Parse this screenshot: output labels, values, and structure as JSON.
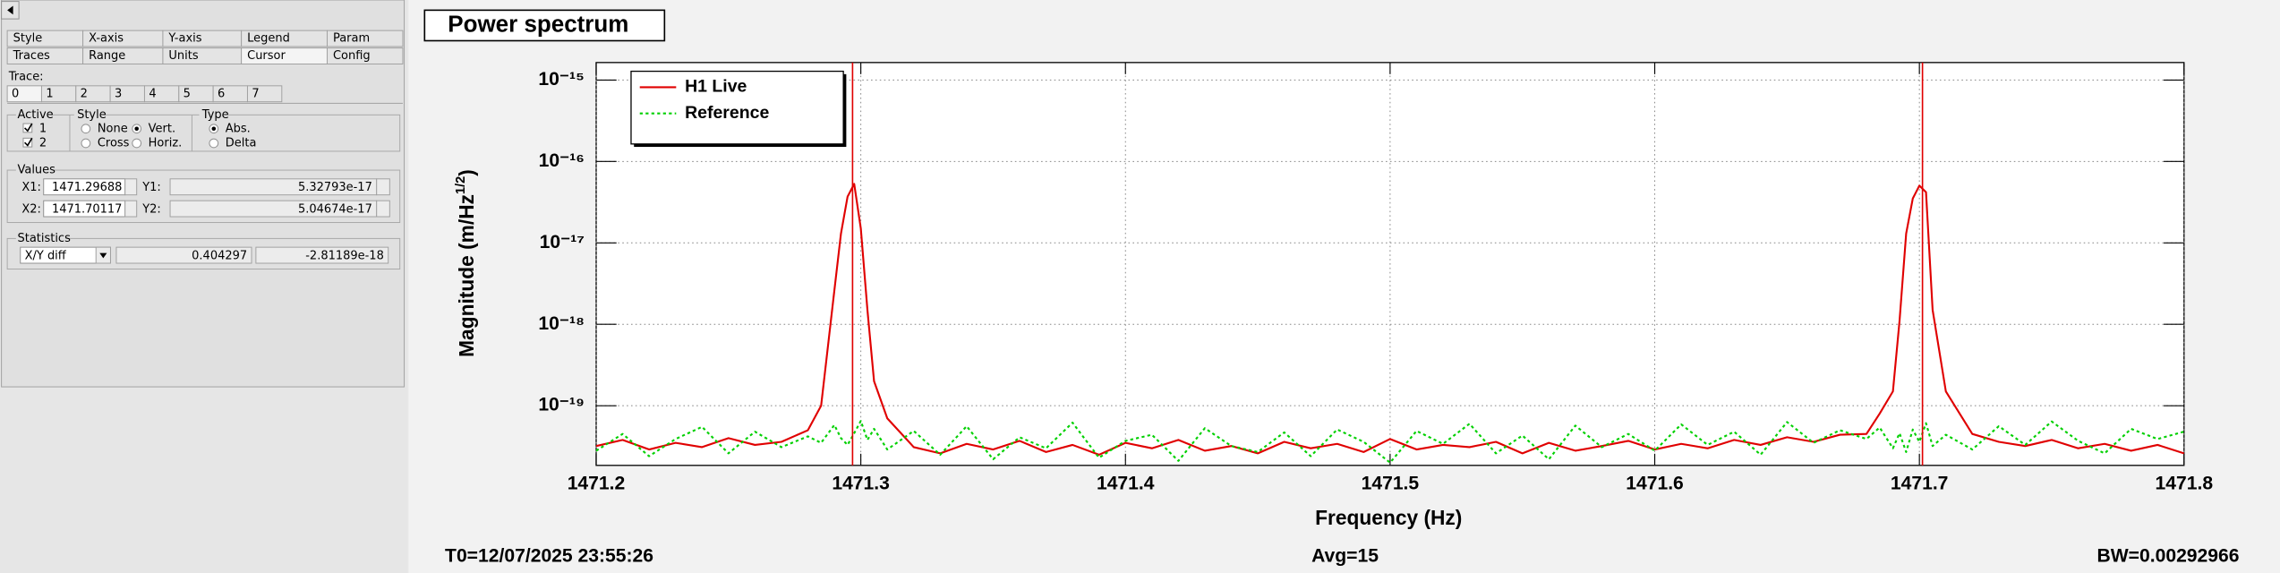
{
  "panel": {
    "tabs_row1": [
      "Style",
      "X-axis",
      "Y-axis",
      "Legend",
      "Param"
    ],
    "tabs_row2": [
      "Traces",
      "Range",
      "Units",
      "Cursor",
      "Config"
    ],
    "trace_label": "Trace:",
    "trace_tabs": [
      "0",
      "1",
      "2",
      "3",
      "4",
      "5",
      "6",
      "7"
    ],
    "active": {
      "title": "Active",
      "items": [
        "1",
        "2"
      ]
    },
    "style": {
      "title": "Style",
      "items": [
        "None",
        "Vert.",
        "Cross",
        "Horiz."
      ]
    },
    "type": {
      "title": "Type",
      "items": [
        "Abs.",
        "Delta"
      ]
    },
    "values": {
      "title": "Values",
      "x1_label": "X1:",
      "y1_label": "Y1:",
      "y1": "5.32793e-17",
      "x2_label": "X2:",
      "y2_label": "Y2:",
      "y2": "5.04674e-17"
    },
    "statistics": {
      "title": "Statistics",
      "mode": "X/Y diff",
      "dx": "0.404297",
      "dy": "-2.81189e-18"
    }
  },
  "chart_data": {
    "type": "line",
    "title": "Power spectrum",
    "x_label": "Frequency (Hz)",
    "y_label": [
      "Magnitude (m/Hz",
      "1/2",
      ")"
    ],
    "log_y": true,
    "grid": true,
    "legend": "upper left",
    "xlim": [
      1471.2,
      1471.8
    ],
    "xticks": [
      1471.2,
      1471.3,
      1471.4,
      1471.5,
      1471.6,
      1471.7,
      1471.8
    ],
    "ylim": [
      1.85e-20,
      1.64e-15
    ],
    "yticks": [
      {
        "value": 1e-15,
        "label": "10⁻¹⁵"
      },
      {
        "value": 1e-16,
        "label": "10⁻¹⁶"
      },
      {
        "value": 1e-17,
        "label": "10⁻¹⁷"
      },
      {
        "value": 1e-18,
        "label": "10⁻¹⁸"
      },
      {
        "value": 1e-19,
        "label": "10⁻¹⁹"
      }
    ],
    "cursors": [
      1471.29688,
      1471.70117
    ],
    "x": [
      1471.2,
      1471.21,
      1471.22,
      1471.23,
      1471.24,
      1471.25,
      1471.26,
      1471.27,
      1471.28,
      1471.285,
      1471.29,
      1471.2925,
      1471.295,
      1471.2975,
      1471.3,
      1471.3025,
      1471.305,
      1471.31,
      1471.32,
      1471.33,
      1471.34,
      1471.35,
      1471.36,
      1471.37,
      1471.38,
      1471.39,
      1471.4,
      1471.41,
      1471.42,
      1471.43,
      1471.44,
      1471.45,
      1471.46,
      1471.47,
      1471.48,
      1471.49,
      1471.5,
      1471.51,
      1471.52,
      1471.53,
      1471.54,
      1471.55,
      1471.56,
      1471.57,
      1471.58,
      1471.59,
      1471.6,
      1471.61,
      1471.62,
      1471.63,
      1471.64,
      1471.65,
      1471.66,
      1471.67,
      1471.68,
      1471.685,
      1471.69,
      1471.6925,
      1471.695,
      1471.6975,
      1471.7,
      1471.7025,
      1471.705,
      1471.71,
      1471.72,
      1471.73,
      1471.74,
      1471.75,
      1471.76,
      1471.77,
      1471.78,
      1471.79,
      1471.8
    ],
    "series": [
      {
        "name": "H1 Live",
        "color": "#e00000",
        "dash": false,
        "values": [
          3.2e-20,
          3.8e-20,
          2.9e-20,
          3.5e-20,
          3.1e-20,
          4e-20,
          3.3e-20,
          3.6e-20,
          5e-20,
          1e-19,
          2.6e-18,
          1.3e-17,
          3.7e-17,
          5.3e-17,
          1.5e-17,
          1.5e-18,
          2e-19,
          7e-20,
          3.1e-20,
          2.6e-20,
          3.4e-20,
          2.9e-20,
          3.7e-20,
          2.7e-20,
          3.3e-20,
          2.5e-20,
          3.5e-20,
          3e-20,
          3.8e-20,
          2.8e-20,
          3.2e-20,
          2.6e-20,
          3.6e-20,
          3e-20,
          3.4e-20,
          2.7e-20,
          3.9e-20,
          2.9e-20,
          3.3e-20,
          3.1e-20,
          3.6e-20,
          2.6e-20,
          3.5e-20,
          2.8e-20,
          3.2e-20,
          3.7e-20,
          2.9e-20,
          3.4e-20,
          3e-20,
          3.8e-20,
          3.3e-20,
          4.1e-20,
          3.6e-20,
          4.4e-20,
          4.5e-20,
          8e-20,
          1.5e-19,
          1.1e-18,
          1.3e-17,
          3.5e-17,
          5.05e-17,
          4.2e-17,
          1.5e-18,
          1.5e-19,
          4.5e-20,
          3.6e-20,
          3.2e-20,
          3.8e-20,
          3e-20,
          3.4e-20,
          2.8e-20,
          3.3e-20,
          2.6e-20
        ]
      },
      {
        "name": "Reference",
        "color": "#00d000",
        "dash": true,
        "values": [
          2.8e-20,
          4.5e-20,
          2.4e-20,
          3.9e-20,
          5.5e-20,
          2.6e-20,
          4.8e-20,
          3.1e-20,
          4.2e-20,
          3.5e-20,
          5.8e-20,
          4e-20,
          3.3e-20,
          4.6e-20,
          6.5e-20,
          3.8e-20,
          5.2e-20,
          2.9e-20,
          4.9e-20,
          2.5e-20,
          5.6e-20,
          2.2e-20,
          4.1e-20,
          3e-20,
          6.2e-20,
          2.3e-20,
          3.7e-20,
          4.4e-20,
          2.1e-20,
          5.3e-20,
          3.2e-20,
          2.7e-20,
          4.7e-20,
          2.4e-20,
          5.1e-20,
          3.6e-20,
          2e-20,
          4.9e-20,
          3.4e-20,
          6e-20,
          2.6e-20,
          4.3e-20,
          2.2e-20,
          5.7e-20,
          3.1e-20,
          4.5e-20,
          2.8e-20,
          5.9e-20,
          3.3e-20,
          4.8e-20,
          2.5e-20,
          6.3e-20,
          3.5e-20,
          5e-20,
          3.9e-20,
          5.4e-20,
          3e-20,
          4.6e-20,
          2.7e-20,
          5.1e-20,
          3.6e-20,
          6.1e-20,
          3.2e-20,
          4.4e-20,
          2.9e-20,
          5.6e-20,
          3.3e-20,
          6.4e-20,
          3.7e-20,
          2.6e-20,
          5.2e-20,
          3.9e-20,
          4.8e-20
        ]
      }
    ]
  },
  "footer": {
    "t0": "T0=12/07/2025 23:55:26",
    "avg": "Avg=15",
    "bw": "BW=0.00292966"
  }
}
